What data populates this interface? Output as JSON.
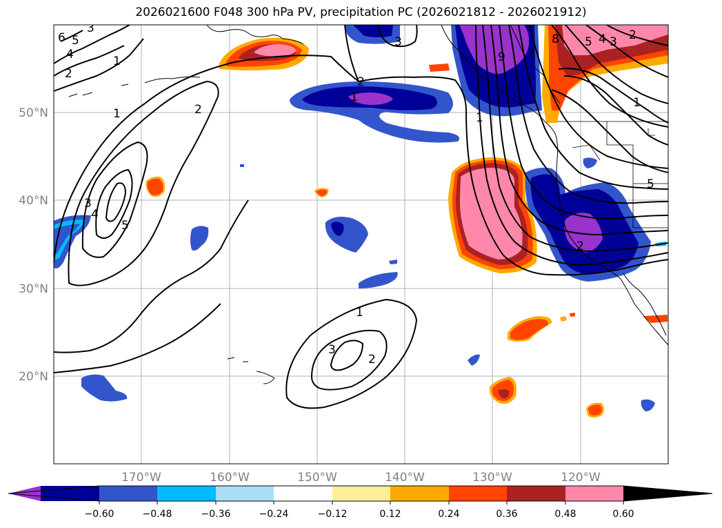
{
  "title": "2026021600 F048 300 hPa PV, precipitation PC (2026021812 - 2026021912)",
  "axes": {
    "lon_labels": [
      "170°W",
      "160°W",
      "150°W",
      "140°W",
      "130°W",
      "120°W"
    ],
    "lat_labels": [
      "50°N",
      "40°N",
      "30°N",
      "20°N"
    ]
  },
  "colorbar": {
    "ticks": [
      "−0.60",
      "−0.48",
      "−0.36",
      "−0.24",
      "−0.12",
      "0.12",
      "0.24",
      "0.36",
      "0.48",
      "0.60"
    ],
    "colors": [
      "#9933cc",
      "#000099",
      "#3355cc",
      "#00bbff",
      "#aaddf7",
      "#ffffff",
      "#ffee99",
      "#ffaa00",
      "#ff4400",
      "#aa2222",
      "#ff88aa"
    ]
  },
  "contour_labels": [
    "6",
    "5",
    "4",
    "3",
    "2",
    "1",
    "1",
    "2",
    "3",
    "4",
    "5",
    "2",
    "3",
    "1",
    "2",
    "3",
    "1",
    "2",
    "1",
    "9",
    "8",
    "5",
    "4",
    "3",
    "2",
    "1",
    "5",
    "2"
  ]
}
